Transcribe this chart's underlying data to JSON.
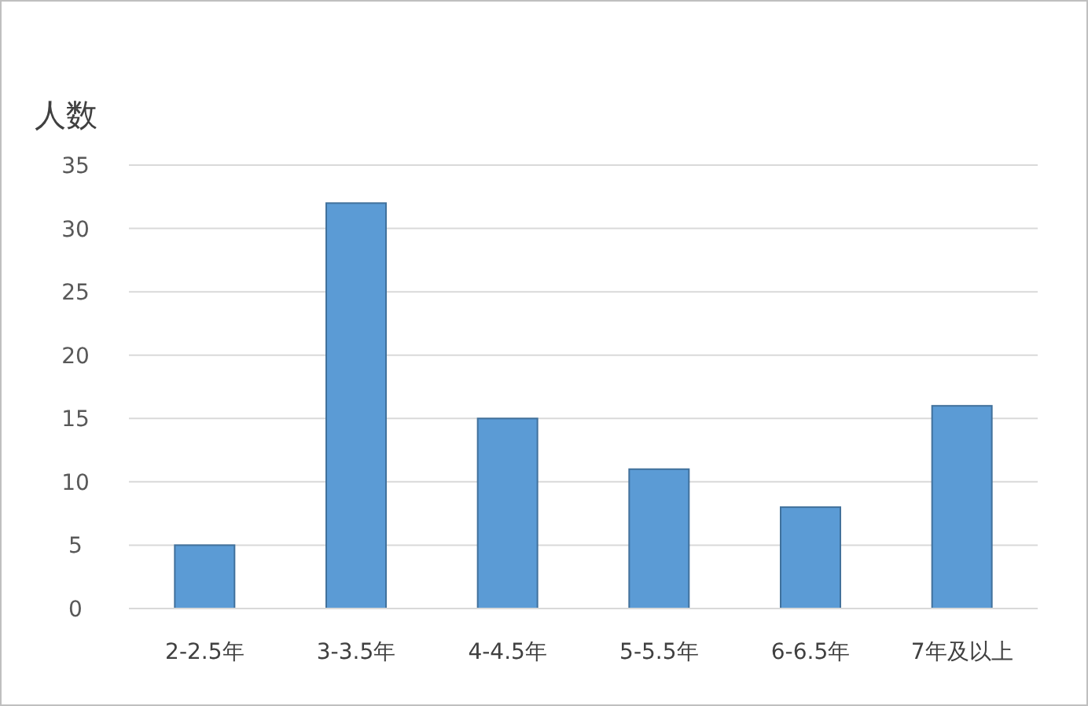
{
  "chart_data": {
    "type": "bar",
    "ylabel": "人数",
    "categories": [
      "2-2.5年",
      "3-3.5年",
      "4-4.5年",
      "5-5.5年",
      "6-6.5年",
      "7年及以上"
    ],
    "values": [
      5,
      32,
      15,
      11,
      8,
      16
    ],
    "color": "#5b9bd5",
    "ylim": [
      0,
      35
    ],
    "yticks": [
      0,
      5,
      10,
      15,
      20,
      25,
      30,
      35
    ],
    "grid": "y"
  }
}
